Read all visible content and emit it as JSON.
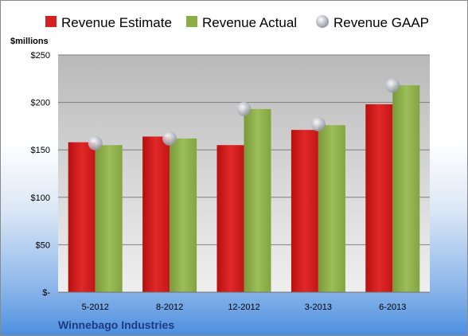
{
  "chart_data": {
    "type": "bar",
    "title": "",
    "ylabel": "$millions",
    "xlabel": "",
    "categories": [
      "5-2012",
      "8-2012",
      "12-2012",
      "3-2013",
      "6-2013"
    ],
    "series": [
      {
        "name": "Revenue Estimate",
        "type": "bar",
        "color": "#d42020",
        "values": [
          158,
          164,
          155,
          171,
          198
        ]
      },
      {
        "name": "Revenue Actual",
        "type": "bar",
        "color": "#8cad48",
        "values": [
          155,
          162,
          193,
          176,
          218
        ]
      },
      {
        "name": "Revenue GAAP",
        "type": "marker",
        "color": "#b8bcc6",
        "values": [
          157,
          162,
          193,
          177,
          218
        ]
      }
    ],
    "y_ticks": [
      0,
      50,
      100,
      150,
      200,
      250
    ],
    "y_tick_labels": [
      "$-",
      "$50",
      "$100",
      "$150",
      "$200",
      "$250"
    ],
    "ylim": [
      0,
      250
    ],
    "grid": true,
    "legend_position": "top",
    "company": "Winnebago Industries"
  }
}
